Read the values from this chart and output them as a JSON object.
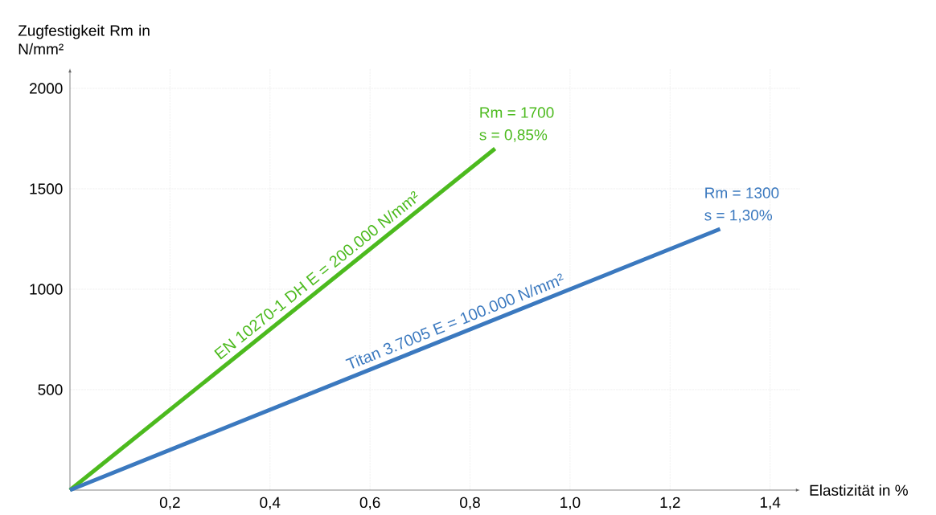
{
  "chart_data": {
    "type": "line",
    "ylabel": "Zugfestigkeit Rm in N/mm²",
    "xlabel": "Elastizität in %",
    "series": [
      {
        "name": "EN 10270-1 DH   E = 200.000 N/mm²",
        "color": "#4cba1e",
        "x": [
          0,
          0.85
        ],
        "values": [
          0,
          1700
        ]
      },
      {
        "name": "Titan 3.7005   E = 100.000 N/mm²",
        "color": "#3b79bf",
        "x": [
          0,
          1.3
        ],
        "values": [
          0,
          1300
        ]
      }
    ],
    "annotations": [
      "Rm = 1700",
      "s = 0,85%",
      "Rm = 1300",
      "s = 1,30%"
    ],
    "xlim": [
      0,
      1.46
    ],
    "ylim": [
      0,
      2100
    ],
    "xticks": [
      {
        "value": 0.2,
        "label": "0,2"
      },
      {
        "value": 0.4,
        "label": "0,4"
      },
      {
        "value": 0.6,
        "label": "0,6"
      },
      {
        "value": 0.8,
        "label": "0,8"
      },
      {
        "value": 1.0,
        "label": "1,0"
      },
      {
        "value": 1.2,
        "label": "1,2"
      },
      {
        "value": 1.4,
        "label": "1,4"
      }
    ],
    "yticks": [
      500,
      1000,
      1500,
      2000
    ],
    "grid": true,
    "legend": false,
    "marker": "none",
    "line_style": "solid"
  }
}
